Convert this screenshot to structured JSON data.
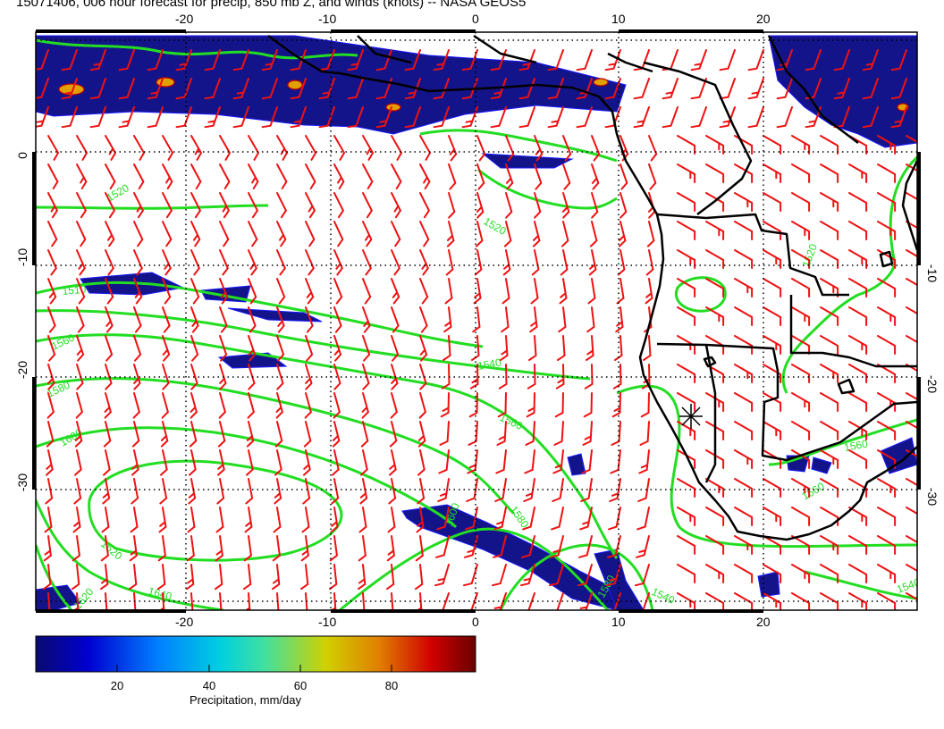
{
  "title": "15071406, 006 hour forecast for precip, 850 mb Z, and winds (knots) -- NASA GEOS5",
  "map": {
    "lon_ticks": [
      "-20",
      "-10",
      "0",
      "10",
      "20"
    ],
    "lat_ticks": [
      "0",
      "-10",
      "-20",
      "-30"
    ],
    "lon_range": [
      -31,
      30
    ],
    "lat_range": [
      -41,
      9
    ],
    "contour_labels": [
      "1520",
      "1520",
      "1510",
      "1560",
      "1540",
      "1560",
      "1580",
      "1580",
      "1600",
      "1600",
      "1620",
      "1640",
      "1580",
      "1620",
      "1540",
      "1520",
      "1560",
      "1540",
      "1560"
    ],
    "colors": {
      "contour": "#22dd22",
      "barb": "#ee1111",
      "coast": "#000000",
      "grid": "#000000"
    }
  },
  "colorbar": {
    "label": "Precipitation, mm/day",
    "ticks": [
      "20",
      "40",
      "60",
      "80"
    ],
    "range": [
      0,
      100
    ],
    "colors": [
      "#0a0a70",
      "#0000d0",
      "#0080ff",
      "#00d0e0",
      "#40e0a0",
      "#d0d000",
      "#e08000",
      "#d00000",
      "#6a0000"
    ]
  }
}
